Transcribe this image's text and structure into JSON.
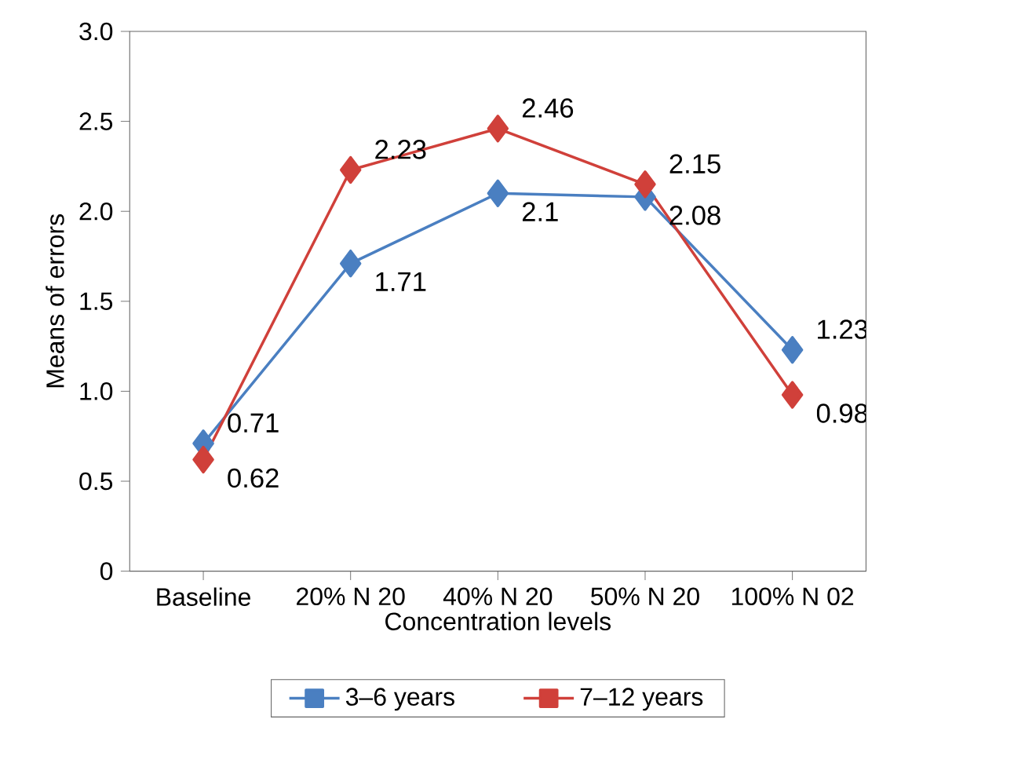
{
  "chart_data": {
    "type": "line",
    "xlabel": "Concentration levels",
    "ylabel": "Means of errors",
    "categories": [
      "Baseline",
      "20% N 20",
      "40% N 20",
      "50% N 20",
      "100% N 02"
    ],
    "series": [
      {
        "name": "3–6 years",
        "color": "#4a7fc1",
        "values": [
          0.71,
          1.71,
          2.1,
          2.08,
          1.23
        ]
      },
      {
        "name": "7–12 years",
        "color": "#d0403a",
        "values": [
          0.62,
          2.23,
          2.46,
          2.15,
          0.98
        ]
      }
    ],
    "ylim": [
      0,
      3
    ],
    "yticks": [
      0,
      0.5,
      {
        "value": 1,
        "label": "1.0"
      },
      1.5,
      {
        "value": 2,
        "label": "2.0"
      },
      2.5,
      {
        "value": 3,
        "label": "3.0"
      }
    ],
    "marker": "diamond",
    "line_style": "solid",
    "legend": "bottom",
    "data_labels": true,
    "grid": false
  }
}
